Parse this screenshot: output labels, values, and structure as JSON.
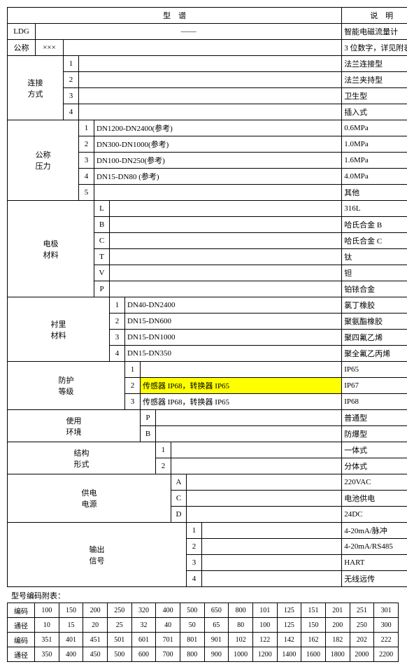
{
  "header": {
    "spec": "型　谱",
    "desc": "说　明"
  },
  "rows": {
    "ldg_code": "LDG",
    "ldg_val": "——",
    "ldg_desc": "智能电磁流量计",
    "gc_code": "公称",
    "gc_val": "×××",
    "gc_desc": "3 位数字，详见附表",
    "conn_label": "连接\n方式",
    "conn": [
      {
        "n": "1",
        "desc": "法兰连接型"
      },
      {
        "n": "2",
        "desc": "法兰夹持型"
      },
      {
        "n": "3",
        "desc": "卫生型"
      },
      {
        "n": "4",
        "desc": "插入式"
      }
    ],
    "press_label": "公称\n压力",
    "press": [
      {
        "n": "1",
        "v": "DN1200-DN2400(参考)",
        "desc": "0.6MPa"
      },
      {
        "n": "2",
        "v": "DN300-DN1000(参考)",
        "desc": "1.0MPa"
      },
      {
        "n": "3",
        "v": "DN100-DN250(参考)",
        "desc": "1.6MPa"
      },
      {
        "n": "4",
        "v": "DN15-DN80 (参考)",
        "desc": "4.0MPa"
      },
      {
        "n": "5",
        "v": "",
        "desc": "其他"
      }
    ],
    "elec_label": "电极\n材料",
    "elec": [
      {
        "n": "L",
        "desc": "316L"
      },
      {
        "n": "B",
        "desc": "哈氏合金 B"
      },
      {
        "n": "C",
        "desc": "哈氏合金 C"
      },
      {
        "n": "T",
        "desc": "钛"
      },
      {
        "n": "V",
        "desc": "钽"
      },
      {
        "n": "P",
        "desc": "铂铱合金"
      }
    ],
    "liner_label": "衬里\n材料",
    "liner": [
      {
        "n": "1",
        "v": "DN40-DN2400",
        "desc": "氯丁橡胶"
      },
      {
        "n": "2",
        "v": "DN15-DN600",
        "desc": "聚氨酯橡胶"
      },
      {
        "n": "3",
        "v": "DN15-DN1000",
        "desc": "聚四氟乙烯"
      },
      {
        "n": "4",
        "v": "DN15-DN350",
        "desc": "聚全氟乙丙烯"
      }
    ],
    "ip_label": "防护\n等级",
    "ip": [
      {
        "n": "1",
        "v": "",
        "desc": "IP65",
        "hl": false
      },
      {
        "n": "2",
        "v": "传感器 IP68，转换器 IP65",
        "desc": "IP67",
        "hl": true
      },
      {
        "n": "3",
        "v": "传感器 IP68，转换器 IP65",
        "desc": "IP68",
        "hl": false
      }
    ],
    "env_label": "使用\n环境",
    "env": [
      {
        "n": "P",
        "desc": "普通型"
      },
      {
        "n": "B",
        "desc": "防爆型"
      }
    ],
    "struct_label": "结构\n形式",
    "struct": [
      {
        "n": "1",
        "desc": "一体式"
      },
      {
        "n": "2",
        "desc": "分体式"
      }
    ],
    "power_label": "供电\n电源",
    "power": [
      {
        "n": "A",
        "desc": "220VAC"
      },
      {
        "n": "C",
        "desc": "电池供电"
      },
      {
        "n": "D",
        "desc": "24DC"
      }
    ],
    "out_label": "输出\n信号",
    "out": [
      {
        "n": "1",
        "desc": "4-20mA/脉冲"
      },
      {
        "n": "2",
        "desc": "4-20mA/RS485"
      },
      {
        "n": "3",
        "desc": "HART"
      },
      {
        "n": "4",
        "desc": "无线远传"
      }
    ]
  },
  "appendix_title": "型号编码附表：",
  "appendix": {
    "labels": [
      "编码",
      "通径",
      "编码",
      "通径"
    ],
    "r1": [
      "100",
      "150",
      "200",
      "250",
      "320",
      "400",
      "500",
      "650",
      "800",
      "101",
      "125",
      "151",
      "201",
      "251",
      "301"
    ],
    "r2": [
      "10",
      "15",
      "20",
      "25",
      "32",
      "40",
      "50",
      "65",
      "80",
      "100",
      "125",
      "150",
      "200",
      "250",
      "300"
    ],
    "r3": [
      "351",
      "401",
      "451",
      "501",
      "601",
      "701",
      "801",
      "901",
      "102",
      "122",
      "142",
      "162",
      "182",
      "202",
      "222"
    ],
    "r4": [
      "350",
      "400",
      "450",
      "500",
      "600",
      "700",
      "800",
      "900",
      "1000",
      "1200",
      "1400",
      "1600",
      "1800",
      "2000",
      "2200"
    ]
  }
}
